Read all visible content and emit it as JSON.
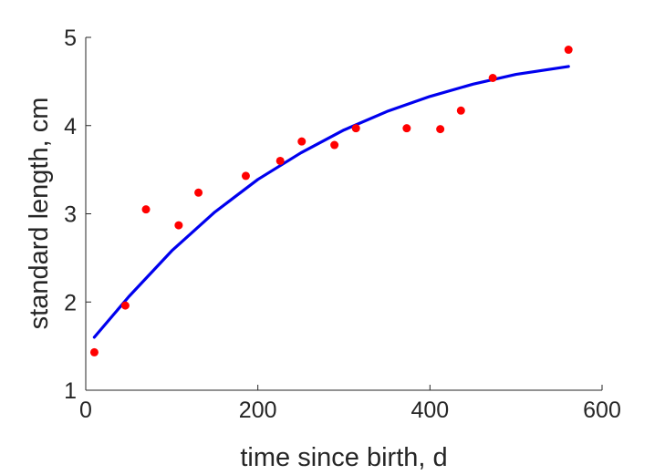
{
  "chart_data": {
    "type": "scatter",
    "title": "",
    "xlabel": "time since birth, d",
    "ylabel": "standard length, cm",
    "xlim": [
      0,
      600
    ],
    "ylim": [
      1,
      5
    ],
    "xticks": [
      0,
      200,
      400,
      600
    ],
    "yticks": [
      1,
      2,
      3,
      4,
      5
    ],
    "grid": false,
    "series": [
      {
        "type": "scatter",
        "color": "#ff0000",
        "x": [
          10,
          46,
          70,
          108,
          131,
          186,
          226,
          251,
          289,
          314,
          373,
          412,
          436,
          473,
          561
        ],
        "y": [
          1.43,
          1.96,
          3.05,
          2.87,
          3.24,
          3.43,
          3.6,
          3.82,
          3.78,
          3.97,
          3.97,
          3.96,
          4.17,
          4.54,
          4.86
        ]
      },
      {
        "type": "line",
        "color": "#0000ee",
        "x": [
          10,
          50,
          100,
          150,
          200,
          250,
          300,
          350,
          400,
          450,
          500,
          561
        ],
        "y": [
          1.6,
          2.06,
          2.58,
          3.02,
          3.39,
          3.69,
          3.95,
          4.16,
          4.33,
          4.47,
          4.58,
          4.67
        ]
      }
    ]
  }
}
